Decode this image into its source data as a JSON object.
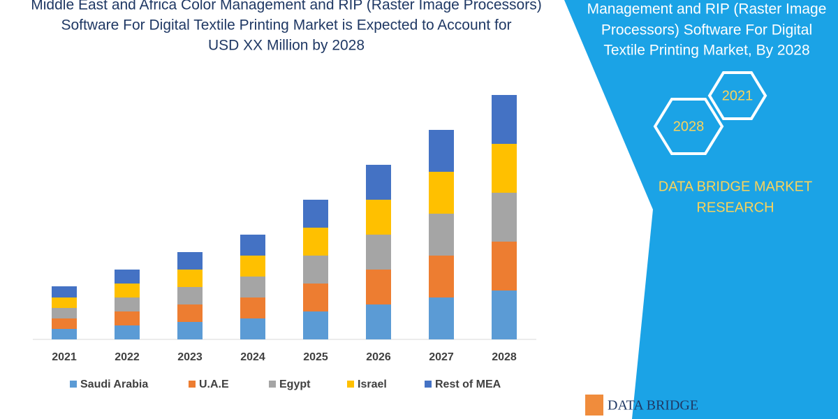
{
  "chart_data": {
    "type": "stacked-bar",
    "title": [
      "Middle East and Africa Color Management and RIP (Raster Image Processors)",
      "Software For Digital Textile Printing Market is Expected to Account for",
      "USD XX Million by 2028"
    ],
    "categories": [
      "2021",
      "2022",
      "2023",
      "2024",
      "2025",
      "2026",
      "2027",
      "2028"
    ],
    "series": [
      {
        "name": "Saudi Arabia",
        "color": "#5b9bd5",
        "values": [
          15,
          20,
          25,
          30,
          40,
          50,
          60,
          70
        ]
      },
      {
        "name": "U.A.E",
        "color": "#ed7d31",
        "values": [
          15,
          20,
          25,
          30,
          40,
          50,
          60,
          70
        ]
      },
      {
        "name": "Egypt",
        "color": "#a5a5a5",
        "values": [
          15,
          20,
          25,
          30,
          40,
          50,
          60,
          70
        ]
      },
      {
        "name": "Israel",
        "color": "#ffc000",
        "values": [
          15,
          20,
          25,
          30,
          40,
          50,
          60,
          70
        ]
      },
      {
        "name": "Rest of MEA",
        "color": "#4472c4",
        "values": [
          16,
          20,
          25,
          30,
          40,
          50,
          60,
          70
        ]
      }
    ]
  },
  "panel": {
    "heading": [
      "Management and RIP (Raster Image",
      "Processors) Software For Digital",
      "Textile Printing Market, By 2028"
    ],
    "hexagons": [
      "2021",
      "2028"
    ],
    "brand": [
      "DATA BRIDGE MARKET",
      "RESEARCH"
    ],
    "logo": "DATA BRIDGE"
  }
}
